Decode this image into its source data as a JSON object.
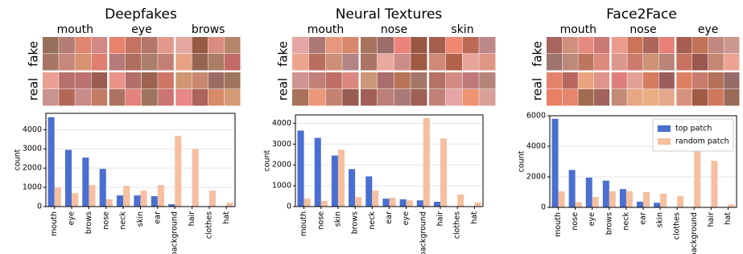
{
  "chart_data": [
    {
      "type": "bar",
      "title": "Deepfakes",
      "patch_groups": [
        "mouth",
        "eye",
        "brows"
      ],
      "row_labels": [
        "fake",
        "real"
      ],
      "ylabel": "count",
      "categories": [
        "mouth",
        "eye",
        "brows",
        "nose",
        "neck",
        "skin",
        "ear",
        "background",
        "hair",
        "clothes",
        "hat"
      ],
      "series": [
        {
          "color": "#4a6fd0",
          "values": [
            4650,
            2950,
            2550,
            1960,
            580,
            580,
            540,
            120,
            0,
            0,
            0
          ]
        },
        {
          "color": "#f5bfa0",
          "values": [
            1000,
            700,
            1120,
            380,
            1080,
            830,
            1120,
            3670,
            3000,
            830,
            200
          ]
        }
      ],
      "ylim": [
        0,
        4850
      ],
      "yticks": [
        0,
        1000,
        2000,
        3000,
        4000
      ],
      "grid": true,
      "legend": "none"
    },
    {
      "type": "bar",
      "title": "Neural Textures",
      "patch_groups": [
        "mouth",
        "nose",
        "skin"
      ],
      "row_labels": [
        "fake",
        "real"
      ],
      "ylabel": "count",
      "categories": [
        "mouth",
        "nose",
        "skin",
        "brows",
        "neck",
        "ear",
        "eye",
        "background",
        "hair",
        "clothes",
        "hat"
      ],
      "series": [
        {
          "color": "#4a6fd0",
          "values": [
            3650,
            3300,
            2450,
            1800,
            1450,
            380,
            350,
            300,
            230,
            0,
            0
          ]
        },
        {
          "color": "#f5bfa0",
          "values": [
            380,
            270,
            2730,
            460,
            770,
            420,
            300,
            4250,
            3270,
            580,
            190
          ]
        }
      ],
      "ylim": [
        0,
        4400
      ],
      "yticks": [
        0,
        1000,
        2000,
        3000,
        4000
      ],
      "grid": true,
      "legend": "none"
    },
    {
      "type": "bar",
      "title": "Face2Face",
      "patch_groups": [
        "mouth",
        "nose",
        "eye"
      ],
      "row_labels": [
        "fake",
        "real"
      ],
      "ylabel": "count",
      "categories": [
        "mouth",
        "nose",
        "eye",
        "brows",
        "neck",
        "ear",
        "skin",
        "clothes",
        "background",
        "hair",
        "hat"
      ],
      "series": [
        {
          "name": "top patch",
          "color": "#4a6fd0",
          "values": [
            5800,
            2450,
            1950,
            1750,
            1200,
            370,
            300,
            0,
            0,
            0,
            0
          ]
        },
        {
          "name": "random patch",
          "color": "#f5bfa0",
          "values": [
            1050,
            350,
            680,
            1050,
            1050,
            1000,
            900,
            750,
            3800,
            3050,
            200
          ]
        }
      ],
      "ylim": [
        0,
        6000
      ],
      "yticks": [
        0,
        2000,
        4000,
        6000
      ],
      "grid": true,
      "legend": "upper right"
    }
  ]
}
